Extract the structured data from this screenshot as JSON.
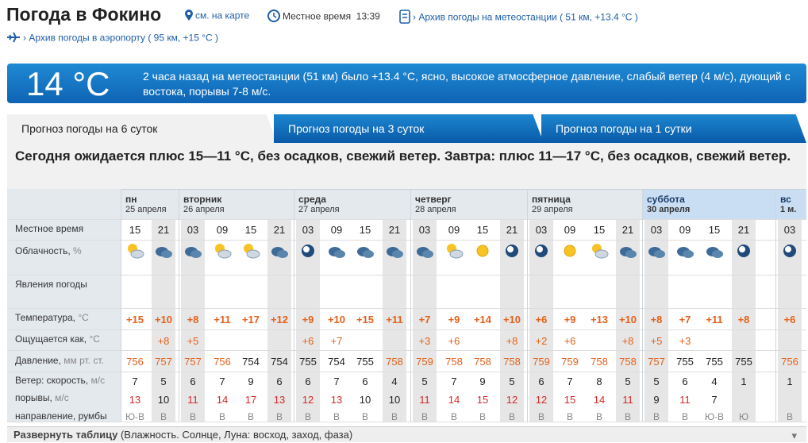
{
  "header": {
    "title": "Погода в Фокино",
    "map_link": "см. на карте",
    "local_time_label": "Местное время",
    "local_time": "13:39",
    "station_archive": "› Архив погоды на метеостанции ( 51 км, +13.4 °C )",
    "airport_archive": "› Архив погоды в аэропорту ( 95 км, +15 °C )"
  },
  "current": {
    "temp": "14 °C",
    "text": "2 часа назад на метеостанции (51 км) было +13.4 °C, ясно, высокое атмосферное давление, слабый ветер (4 м/с), дующий с востока, порывы 7-8 м/с."
  },
  "tabs": [
    "Прогноз погоды на 6 суток",
    "Прогноз погоды на 3 суток",
    "Прогноз погоды на 1 сутки"
  ],
  "summary": "Сегодня ожидается плюс 15—11 °С, без осадков, свежий ветер. Завтра: плюс 11—17 °С, без осадков, свежий ветер.",
  "row_labels": {
    "time": "Местное время",
    "clouds": "Облачность,",
    "clouds_unit": "%",
    "phenomena": "Явления погоды",
    "temperature": "Температура,",
    "temperature_unit": "°C",
    "feels": "Ощущается как,",
    "feels_unit": "°C",
    "pressure": "Давление,",
    "pressure_unit": "мм рт. ст.",
    "wind_speed": "Ветер: скорость,",
    "wind_speed_unit": "м/с",
    "gusts": "порывы,",
    "gusts_unit": "м/с",
    "direction": "направление, румбы"
  },
  "days": [
    {
      "name": "пн",
      "date": "25 апреля"
    },
    {
      "name": "вторник",
      "date": "26 апреля"
    },
    {
      "name": "среда",
      "date": "27 апреля"
    },
    {
      "name": "четверг",
      "date": "28 апреля"
    },
    {
      "name": "пятница",
      "date": "29 апреля"
    },
    {
      "name": "суббота",
      "date": "30 апреля"
    },
    {
      "name": "вс",
      "date": "1 м."
    }
  ],
  "columns": [
    {
      "t": "15",
      "temp": "+15",
      "feels": "",
      "p": "756",
      "w": "7",
      "g": "13",
      "d": "Ю-В"
    },
    {
      "t": "21",
      "temp": "+10",
      "feels": "+8",
      "p": "757",
      "w": "5",
      "g": "10",
      "d": "В"
    },
    {
      "t": "03",
      "temp": "+8",
      "feels": "+5",
      "p": "757",
      "w": "6",
      "g": "11",
      "d": "В"
    },
    {
      "t": "09",
      "temp": "+11",
      "feels": "",
      "p": "756",
      "w": "7",
      "g": "14",
      "d": "В"
    },
    {
      "t": "15",
      "temp": "+17",
      "feels": "",
      "p": "754",
      "w": "9",
      "g": "17",
      "d": "В"
    },
    {
      "t": "21",
      "temp": "+12",
      "feels": "",
      "p": "754",
      "w": "6",
      "g": "13",
      "d": "В"
    },
    {
      "t": "03",
      "temp": "+9",
      "feels": "+6",
      "p": "755",
      "w": "6",
      "g": "12",
      "d": "В"
    },
    {
      "t": "09",
      "temp": "+10",
      "feels": "+7",
      "p": "754",
      "w": "7",
      "g": "13",
      "d": "В"
    },
    {
      "t": "15",
      "temp": "+15",
      "feels": "",
      "p": "755",
      "w": "6",
      "g": "10",
      "d": "В"
    },
    {
      "t": "21",
      "temp": "+11",
      "feels": "",
      "p": "758",
      "w": "4",
      "g": "10",
      "d": "В"
    },
    {
      "t": "03",
      "temp": "+7",
      "feels": "+3",
      "p": "759",
      "w": "5",
      "g": "11",
      "d": "В"
    },
    {
      "t": "09",
      "temp": "+9",
      "feels": "+6",
      "p": "758",
      "w": "7",
      "g": "14",
      "d": "В"
    },
    {
      "t": "15",
      "temp": "+14",
      "feels": "",
      "p": "758",
      "w": "9",
      "g": "15",
      "d": "В"
    },
    {
      "t": "21",
      "temp": "+10",
      "feels": "+8",
      "p": "758",
      "w": "5",
      "g": "12",
      "d": "В"
    },
    {
      "t": "03",
      "temp": "+6",
      "feels": "+2",
      "p": "759",
      "w": "6",
      "g": "12",
      "d": "В"
    },
    {
      "t": "09",
      "temp": "+9",
      "feels": "+6",
      "p": "759",
      "w": "7",
      "g": "15",
      "d": "В"
    },
    {
      "t": "15",
      "temp": "+13",
      "feels": "",
      "p": "758",
      "w": "8",
      "g": "14",
      "d": "В"
    },
    {
      "t": "21",
      "temp": "+10",
      "feels": "+8",
      "p": "758",
      "w": "5",
      "g": "11",
      "d": "В"
    },
    {
      "t": "03",
      "temp": "+8",
      "feels": "+5",
      "p": "757",
      "w": "5",
      "g": "9",
      "d": "В"
    },
    {
      "t": "09",
      "temp": "+7",
      "feels": "+3",
      "p": "755",
      "w": "6",
      "g": "11",
      "d": "В"
    },
    {
      "t": "15",
      "temp": "+11",
      "feels": "",
      "p": "755",
      "w": "4",
      "g": "7",
      "d": "Ю-В"
    },
    {
      "t": "21",
      "temp": "+8",
      "feels": "",
      "p": "755",
      "w": "1",
      "g": "",
      "d": "Ю"
    },
    {
      "t": "03",
      "temp": "+6",
      "feels": "",
      "p": "756",
      "w": "1",
      "g": "",
      "d": "В"
    }
  ],
  "footer": {
    "expand": "Развернуть таблицу",
    "detail": "(Влажность. Солнце, Луна: восход, заход, фаза)"
  },
  "colors": {
    "accent": "#1f8ad4",
    "temp": "#e2621b",
    "gust": "#d62828",
    "link": "#1f5fa8"
  }
}
